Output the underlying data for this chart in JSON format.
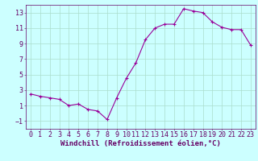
{
  "x": [
    0,
    1,
    2,
    3,
    4,
    5,
    6,
    7,
    8,
    9,
    10,
    11,
    12,
    13,
    14,
    15,
    16,
    17,
    18,
    19,
    20,
    21,
    22,
    23
  ],
  "y": [
    2.5,
    2.2,
    2.0,
    1.8,
    1.0,
    1.2,
    0.5,
    0.3,
    -0.8,
    2.0,
    4.5,
    6.5,
    9.5,
    11.0,
    11.5,
    11.5,
    13.5,
    13.2,
    13.0,
    11.8,
    11.1,
    10.8,
    10.8,
    8.8
  ],
  "line_color": "#990099",
  "marker": "+",
  "marker_size": 3,
  "background_color": "#ccffff",
  "grid_color": "#aaddcc",
  "xlabel": "Windchill (Refroidissement éolien,°C)",
  "ylabel": "",
  "xlim": [
    -0.5,
    23.5
  ],
  "ylim": [
    -2,
    14
  ],
  "yticks": [
    -1,
    1,
    3,
    5,
    7,
    9,
    11,
    13
  ],
  "xticks": [
    0,
    1,
    2,
    3,
    4,
    5,
    6,
    7,
    8,
    9,
    10,
    11,
    12,
    13,
    14,
    15,
    16,
    17,
    18,
    19,
    20,
    21,
    22,
    23
  ],
  "font_color": "#660066",
  "spine_color": "#660066",
  "tick_color": "#660066",
  "font_size": 6,
  "xlabel_font_size": 6.5,
  "linewidth": 0.8
}
